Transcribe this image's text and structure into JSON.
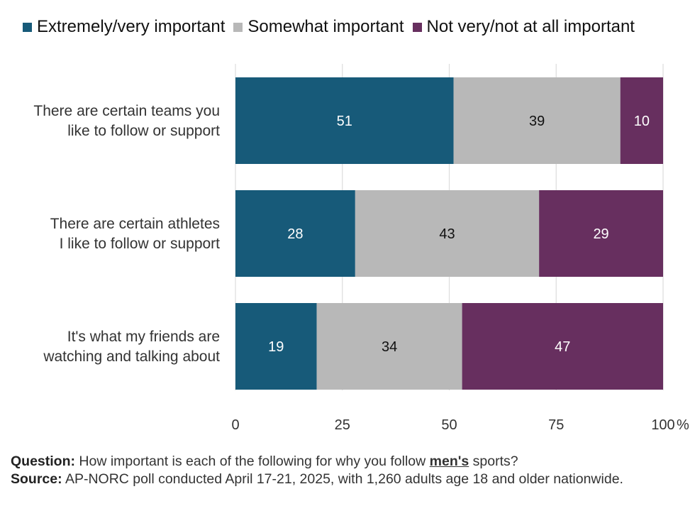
{
  "chart_data": {
    "type": "bar",
    "orientation": "horizontal",
    "stacked": true,
    "categories": [
      [
        "There are certain teams you",
        "like to follow or support"
      ],
      [
        "There are certain athletes",
        "I like to follow or support"
      ],
      [
        "It's what my friends are",
        "watching and talking about"
      ]
    ],
    "series": [
      {
        "name": "Extremely/very important",
        "color": "#175a79",
        "label_color": "#ffffff",
        "values": [
          51,
          28,
          19
        ]
      },
      {
        "name": "Somewhat important",
        "color": "#b8b8b8",
        "label_color": "#111111",
        "values": [
          39,
          43,
          34
        ]
      },
      {
        "name": "Not very/not at all important",
        "color": "#672f5f",
        "label_color": "#ffffff",
        "values": [
          10,
          29,
          47
        ]
      }
    ],
    "xlim": [
      0,
      100
    ],
    "xticks": [
      "0",
      "25",
      "50",
      "75",
      "100"
    ],
    "xunit": "%",
    "grid": true,
    "legend_position": "top"
  },
  "notes": {
    "question_label": "Question:",
    "question_pre": "How important is each of the following for why you follow",
    "question_emph": "men's",
    "question_post": "sports?",
    "source_label": "Source:",
    "source_text": "AP-NORC poll conducted April 17-21, 2025, with 1,260 adults age 18 and older nationwide."
  }
}
